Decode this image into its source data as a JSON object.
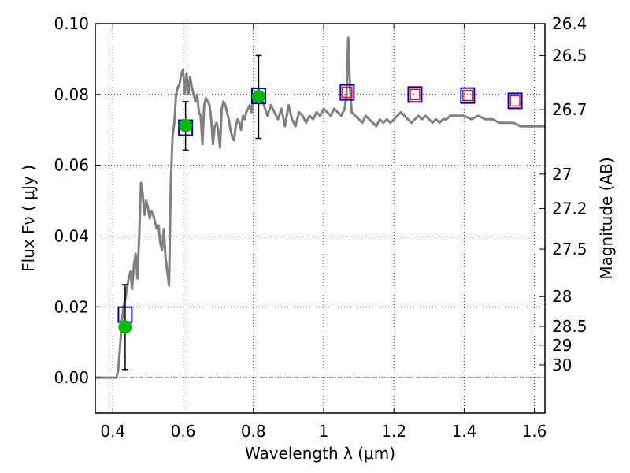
{
  "chart_data": {
    "type": "scatter",
    "xlabel": "Wavelength  λ (μm)",
    "ylabel": "Flux  Fν  ( μJy )",
    "ylabel_right": "Magnitude (AB)",
    "xlim": [
      0.35,
      1.63
    ],
    "ylim": [
      -0.01,
      0.1
    ],
    "grid": true,
    "x_ticks": [
      {
        "value": 0.4,
        "label": "0.4"
      },
      {
        "value": 0.6,
        "label": "0.6"
      },
      {
        "value": 0.8,
        "label": "0.8"
      },
      {
        "value": 1.0,
        "label": "1"
      },
      {
        "value": 1.2,
        "label": "1.2"
      },
      {
        "value": 1.4,
        "label": "1.4"
      },
      {
        "value": 1.6,
        "label": "1.6"
      }
    ],
    "y_ticks": [
      {
        "value": 0.0,
        "label": "0.00"
      },
      {
        "value": 0.02,
        "label": "0.02"
      },
      {
        "value": 0.04,
        "label": "0.04"
      },
      {
        "value": 0.06,
        "label": "0.06"
      },
      {
        "value": 0.08,
        "label": "0.08"
      },
      {
        "value": 0.1,
        "label": "0.10"
      }
    ],
    "right_ticks": [
      {
        "flux": 0.1,
        "label": "26.4"
      },
      {
        "flux": 0.091,
        "label": "26.5"
      },
      {
        "flux": 0.0757,
        "label": "26.7"
      },
      {
        "flux": 0.0575,
        "label": "27"
      },
      {
        "flux": 0.0478,
        "label": "27.2"
      },
      {
        "flux": 0.0363,
        "label": "27.5"
      },
      {
        "flux": 0.0229,
        "label": "28"
      },
      {
        "flux": 0.0145,
        "label": "28.5"
      },
      {
        "flux": 0.0092,
        "label": "29"
      },
      {
        "flux": 0.0036,
        "label": "30"
      }
    ],
    "zero_line": 0.0,
    "series": [
      {
        "kind": "line",
        "color": "#808080",
        "points": [
          [
            0.35,
            0.0
          ],
          [
            0.41,
            0.0
          ],
          [
            0.415,
            0.002
          ],
          [
            0.42,
            0.008
          ],
          [
            0.425,
            0.015
          ],
          [
            0.43,
            0.02
          ],
          [
            0.435,
            0.022
          ],
          [
            0.44,
            0.025
          ],
          [
            0.445,
            0.028
          ],
          [
            0.45,
            0.03
          ],
          [
            0.455,
            0.025
          ],
          [
            0.46,
            0.032
          ],
          [
            0.465,
            0.035
          ],
          [
            0.47,
            0.028
          ],
          [
            0.475,
            0.04
          ],
          [
            0.48,
            0.055
          ],
          [
            0.485,
            0.052
          ],
          [
            0.49,
            0.046
          ],
          [
            0.495,
            0.05
          ],
          [
            0.5,
            0.048
          ],
          [
            0.505,
            0.045
          ],
          [
            0.51,
            0.047
          ],
          [
            0.515,
            0.046
          ],
          [
            0.52,
            0.044
          ],
          [
            0.525,
            0.042
          ],
          [
            0.53,
            0.043
          ],
          [
            0.535,
            0.038
          ],
          [
            0.54,
            0.036
          ],
          [
            0.545,
            0.042
          ],
          [
            0.55,
            0.034
          ],
          [
            0.555,
            0.03
          ],
          [
            0.56,
            0.026
          ],
          [
            0.565,
            0.055
          ],
          [
            0.57,
            0.068
          ],
          [
            0.575,
            0.072
          ],
          [
            0.58,
            0.08
          ],
          [
            0.585,
            0.082
          ],
          [
            0.59,
            0.083
          ],
          [
            0.595,
            0.086
          ],
          [
            0.6,
            0.087
          ],
          [
            0.605,
            0.08
          ],
          [
            0.61,
            0.086
          ],
          [
            0.615,
            0.08
          ],
          [
            0.62,
            0.085
          ],
          [
            0.625,
            0.082
          ],
          [
            0.63,
            0.08
          ],
          [
            0.635,
            0.078
          ],
          [
            0.64,
            0.08
          ],
          [
            0.645,
            0.075
          ],
          [
            0.65,
            0.074
          ],
          [
            0.655,
            0.066
          ],
          [
            0.66,
            0.077
          ],
          [
            0.665,
            0.079
          ],
          [
            0.67,
            0.078
          ],
          [
            0.675,
            0.077
          ],
          [
            0.68,
            0.073
          ],
          [
            0.685,
            0.066
          ],
          [
            0.69,
            0.071
          ],
          [
            0.695,
            0.072
          ],
          [
            0.7,
            0.07
          ],
          [
            0.705,
            0.065
          ],
          [
            0.71,
            0.076
          ],
          [
            0.715,
            0.078
          ],
          [
            0.72,
            0.077
          ],
          [
            0.725,
            0.075
          ],
          [
            0.73,
            0.073
          ],
          [
            0.735,
            0.07
          ],
          [
            0.74,
            0.068
          ],
          [
            0.745,
            0.067
          ],
          [
            0.75,
            0.071
          ],
          [
            0.755,
            0.073
          ],
          [
            0.76,
            0.072
          ],
          [
            0.765,
            0.07
          ],
          [
            0.77,
            0.074
          ],
          [
            0.775,
            0.073
          ],
          [
            0.78,
            0.075
          ],
          [
            0.785,
            0.076
          ],
          [
            0.79,
            0.077
          ],
          [
            0.795,
            0.075
          ],
          [
            0.8,
            0.079
          ],
          [
            0.81,
            0.078
          ],
          [
            0.82,
            0.08
          ],
          [
            0.83,
            0.077
          ],
          [
            0.84,
            0.074
          ],
          [
            0.85,
            0.077
          ],
          [
            0.86,
            0.075
          ],
          [
            0.87,
            0.073
          ],
          [
            0.88,
            0.076
          ],
          [
            0.89,
            0.071
          ],
          [
            0.9,
            0.077
          ],
          [
            0.91,
            0.073
          ],
          [
            0.92,
            0.071
          ],
          [
            0.93,
            0.075
          ],
          [
            0.94,
            0.074
          ],
          [
            0.95,
            0.072
          ],
          [
            0.96,
            0.074
          ],
          [
            0.97,
            0.073
          ],
          [
            0.98,
            0.075
          ],
          [
            0.99,
            0.074
          ],
          [
            1.0,
            0.076
          ],
          [
            1.01,
            0.075
          ],
          [
            1.02,
            0.074
          ],
          [
            1.03,
            0.076
          ],
          [
            1.04,
            0.075
          ],
          [
            1.05,
            0.074
          ],
          [
            1.06,
            0.076
          ],
          [
            1.065,
            0.08
          ],
          [
            1.07,
            0.096
          ],
          [
            1.075,
            0.082
          ],
          [
            1.08,
            0.075
          ],
          [
            1.09,
            0.074
          ],
          [
            1.1,
            0.073
          ],
          [
            1.11,
            0.072
          ],
          [
            1.12,
            0.074
          ],
          [
            1.13,
            0.073
          ],
          [
            1.14,
            0.072
          ],
          [
            1.15,
            0.071
          ],
          [
            1.16,
            0.073
          ],
          [
            1.17,
            0.072
          ],
          [
            1.18,
            0.073
          ],
          [
            1.19,
            0.072
          ],
          [
            1.2,
            0.073
          ],
          [
            1.21,
            0.074
          ],
          [
            1.22,
            0.075
          ],
          [
            1.23,
            0.074
          ],
          [
            1.24,
            0.073
          ],
          [
            1.25,
            0.072
          ],
          [
            1.26,
            0.073
          ],
          [
            1.27,
            0.074
          ],
          [
            1.28,
            0.073
          ],
          [
            1.29,
            0.074
          ],
          [
            1.3,
            0.073
          ],
          [
            1.31,
            0.072
          ],
          [
            1.32,
            0.073
          ],
          [
            1.33,
            0.072
          ],
          [
            1.34,
            0.073
          ],
          [
            1.35,
            0.073
          ],
          [
            1.36,
            0.074
          ],
          [
            1.38,
            0.074
          ],
          [
            1.4,
            0.074
          ],
          [
            1.42,
            0.073
          ],
          [
            1.44,
            0.074
          ],
          [
            1.46,
            0.073
          ],
          [
            1.48,
            0.073
          ],
          [
            1.5,
            0.072
          ],
          [
            1.52,
            0.072
          ],
          [
            1.54,
            0.072
          ],
          [
            1.56,
            0.071
          ],
          [
            1.58,
            0.071
          ],
          [
            1.6,
            0.071
          ],
          [
            1.63,
            0.071
          ]
        ]
      },
      {
        "kind": "open-square",
        "color": "#0000cc",
        "points": [
          [
            0.435,
            0.0178
          ],
          [
            0.607,
            0.0706
          ],
          [
            0.815,
            0.0796
          ],
          [
            1.067,
            0.0806
          ],
          [
            1.26,
            0.08
          ],
          [
            1.41,
            0.0797
          ],
          [
            1.545,
            0.0782
          ]
        ]
      },
      {
        "kind": "small-open-square",
        "color": "#ff0000",
        "points": [
          [
            1.067,
            0.0806
          ],
          [
            1.26,
            0.08
          ],
          [
            1.41,
            0.0797
          ],
          [
            1.545,
            0.0782
          ]
        ]
      },
      {
        "kind": "filled-circle",
        "color": "#00bb00",
        "points": [
          [
            0.435,
            0.0143,
            0.0023,
            0.0263
          ],
          [
            0.607,
            0.0712,
            0.0643,
            0.078
          ],
          [
            0.815,
            0.0794,
            0.0676,
            0.091
          ]
        ]
      }
    ]
  }
}
